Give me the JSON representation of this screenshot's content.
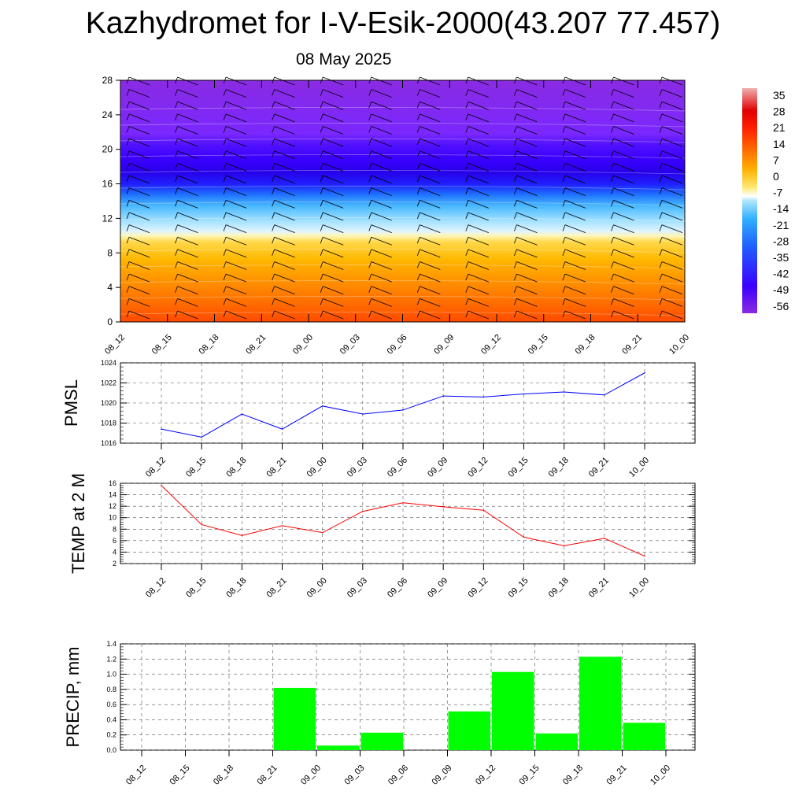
{
  "title": "Kazhydromet for I-V-Esik-2000(43.207 77.457)",
  "subtitle": "08 May 2025",
  "time_labels": [
    "08_12",
    "08_15",
    "08_18",
    "08_21",
    "09_00",
    "09_03",
    "09_06",
    "09_09",
    "09_12",
    "09_15",
    "09_18",
    "09_21",
    "10_00"
  ],
  "colorbar": {
    "labels": [
      "35",
      "28",
      "21",
      "14",
      "7",
      "0",
      "-7",
      "-14",
      "-21",
      "-28",
      "-35",
      "-42",
      "-49",
      "-56"
    ]
  },
  "chart_data": [
    {
      "type": "heatmap",
      "name": "temperature-wind-cross-section",
      "y_ticks": [
        "0",
        "4",
        "8",
        "12",
        "16",
        "20",
        "24",
        "28"
      ],
      "ylim": [
        0,
        28
      ],
      "description_colors": {
        "warm": "#ff5a00",
        "cold": "#3a00ff",
        "top": "#8a2be2"
      }
    },
    {
      "type": "line",
      "ylabel": "PMSL",
      "y_ticks": [
        "1016",
        "1018",
        "1020",
        "1022",
        "1024"
      ],
      "ylim": [
        1016,
        1024
      ],
      "color": "#0000ff",
      "values": [
        1017.4,
        1016.6,
        1018.9,
        1017.4,
        1019.7,
        1018.9,
        1019.3,
        1020.7,
        1020.6,
        1020.9,
        1021.1,
        1020.8,
        1023.0
      ]
    },
    {
      "type": "line",
      "ylabel": "TEMP at 2 M",
      "y_ticks": [
        "2",
        "4",
        "6",
        "8",
        "10",
        "12",
        "14",
        "16"
      ],
      "ylim": [
        2,
        16
      ],
      "color": "#ff0000",
      "values": [
        15.6,
        8.8,
        6.9,
        8.6,
        7.4,
        11.1,
        12.6,
        11.9,
        11.3,
        6.6,
        5.1,
        6.4,
        3.3
      ]
    },
    {
      "type": "bar",
      "ylabel": "PRECIP, mm",
      "y_ticks": [
        "0.0",
        "0.2",
        "0.4",
        "0.6",
        "0.8",
        "1.0",
        "1.2",
        "1.4"
      ],
      "ylim": [
        0,
        1.4
      ],
      "color": "#00ff00",
      "values": [
        0,
        0,
        0,
        0.82,
        0.06,
        0.23,
        0,
        0.51,
        1.03,
        0.22,
        1.23,
        0.36
      ]
    }
  ]
}
